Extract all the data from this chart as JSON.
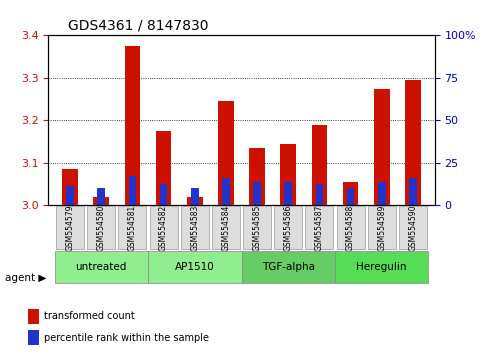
{
  "title": "GDS4361 / 8147830",
  "samples": [
    "GSM554579",
    "GSM554580",
    "GSM554581",
    "GSM554582",
    "GSM554583",
    "GSM554584",
    "GSM554585",
    "GSM554586",
    "GSM554587",
    "GSM554588",
    "GSM554589",
    "GSM554590"
  ],
  "red_values": [
    3.085,
    3.02,
    3.375,
    3.175,
    3.02,
    3.245,
    3.135,
    3.145,
    3.19,
    3.055,
    3.275,
    3.295
  ],
  "blue_values": [
    3.045,
    3.04,
    3.07,
    3.05,
    3.04,
    3.065,
    3.055,
    3.055,
    3.05,
    3.04,
    3.055,
    3.065
  ],
  "ymin": 3.0,
  "ymax": 3.4,
  "yticks": [
    3.0,
    3.1,
    3.2,
    3.3,
    3.4
  ],
  "right_yticks": [
    0,
    25,
    50,
    75,
    100
  ],
  "right_ytick_labels": [
    "0",
    "25",
    "50",
    "75",
    "100%"
  ],
  "agents": [
    {
      "label": "untreated",
      "start": 0,
      "end": 3,
      "color": "#90EE90"
    },
    {
      "label": "AP1510",
      "start": 3,
      "end": 6,
      "color": "#90EE90"
    },
    {
      "label": "TGF-alpha",
      "start": 6,
      "end": 9,
      "color": "#66CC66"
    },
    {
      "label": "Heregulin",
      "start": 9,
      "end": 12,
      "color": "#55DD55"
    }
  ],
  "bar_width": 0.5,
  "red_color": "#CC1100",
  "blue_color": "#2233CC",
  "bg_color": "#ffffff",
  "plot_bg_color": "#ffffff",
  "grid_color": "#000000",
  "left_tick_color": "#CC1100",
  "right_tick_color": "#0000CC"
}
